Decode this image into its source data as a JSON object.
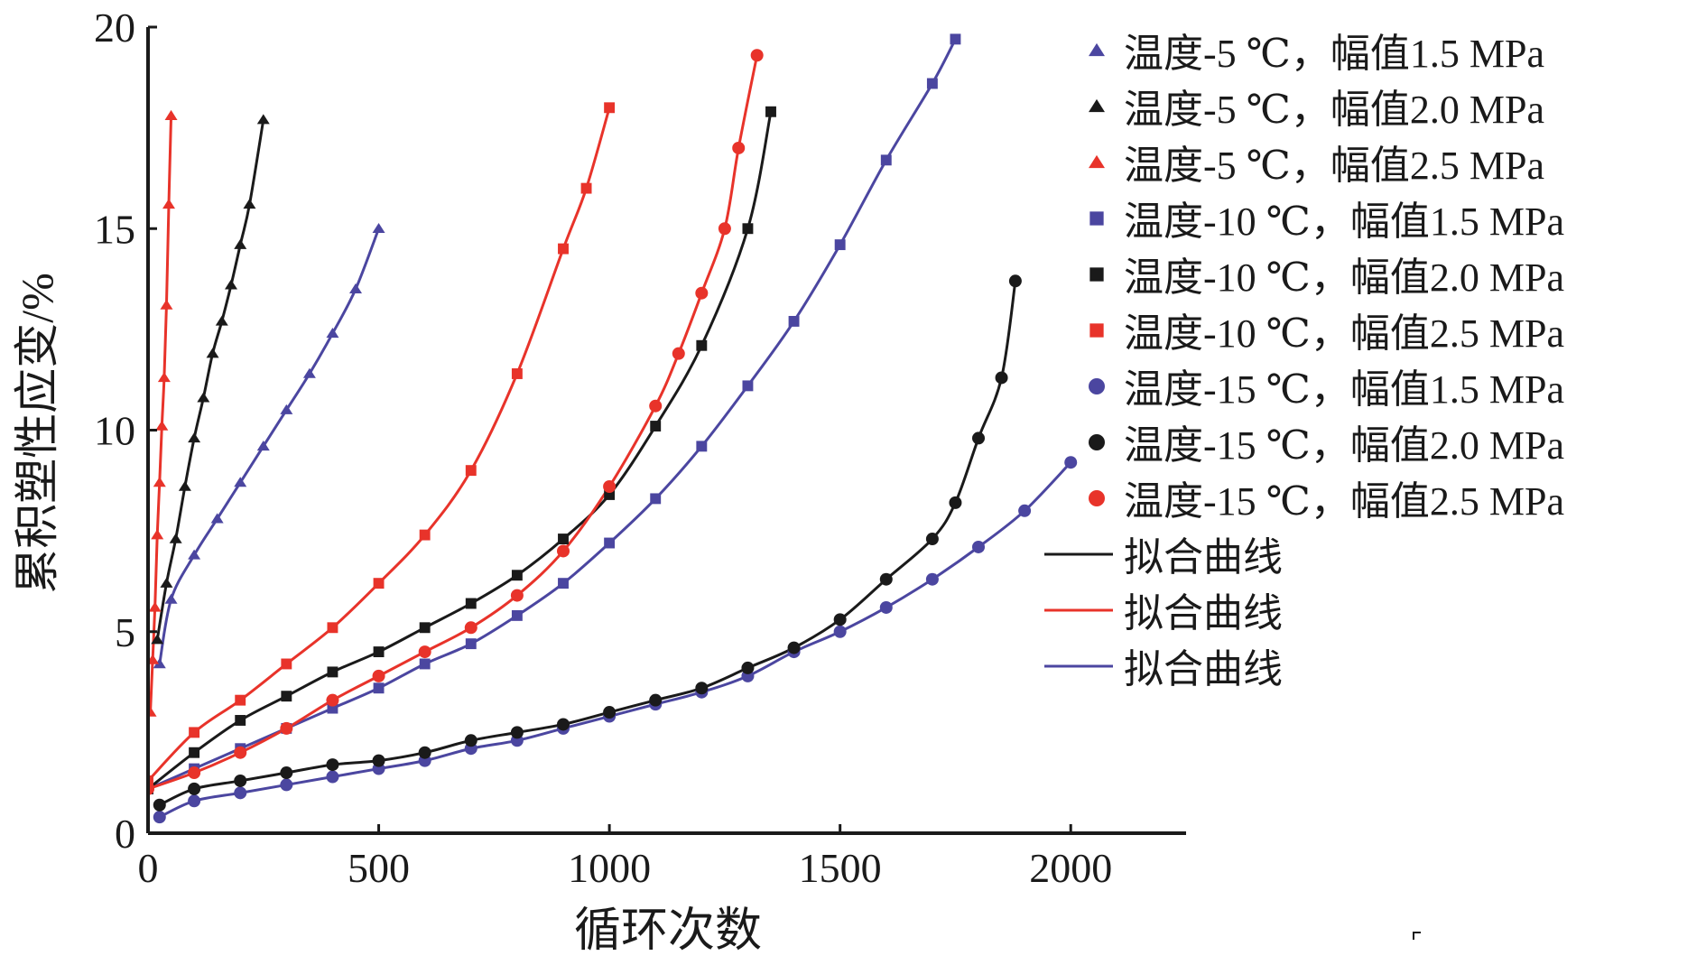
{
  "chart_data": {
    "type": "scatter",
    "title": "",
    "xlabel": "循环次数",
    "ylabel": "累积塑性应变/%",
    "xlim": [
      0,
      2250
    ],
    "ylim": [
      0,
      20
    ],
    "xticks": [
      "0",
      "500",
      "1000",
      "1500",
      "2000"
    ],
    "yticks": [
      "0",
      "5",
      "10",
      "15",
      "20"
    ],
    "grid": false,
    "legend_position": "right",
    "colors": {
      "blue": "#4b46a0",
      "black": "#1a1a1a",
      "red": "#e8332a"
    },
    "series": [
      {
        "name": "温度-5 ℃，幅值1.5 MPa",
        "marker": "triangle",
        "color": "blue",
        "x": [
          25,
          50,
          100,
          150,
          200,
          250,
          300,
          350,
          400,
          450,
          500
        ],
        "y": [
          4.2,
          5.8,
          6.9,
          7.8,
          8.7,
          9.6,
          10.5,
          11.4,
          12.4,
          13.5,
          15.0
        ]
      },
      {
        "name": "温度-5 ℃，幅值2.0 MPa",
        "marker": "triangle",
        "color": "black",
        "x": [
          20,
          40,
          60,
          80,
          100,
          120,
          140,
          160,
          180,
          200,
          220,
          250
        ],
        "y": [
          4.8,
          6.2,
          7.3,
          8.6,
          9.8,
          10.8,
          11.9,
          12.7,
          13.6,
          14.6,
          15.6,
          17.7
        ]
      },
      {
        "name": "温度-5 ℃，幅值2.5 MPa",
        "marker": "triangle",
        "color": "red",
        "x": [
          5,
          10,
          15,
          20,
          25,
          30,
          35,
          40,
          45,
          50
        ],
        "y": [
          3.0,
          4.3,
          5.6,
          7.4,
          8.7,
          10.1,
          11.3,
          13.1,
          15.6,
          17.8
        ]
      },
      {
        "name": "温度-10 ℃，幅值1.5 MPa",
        "marker": "square",
        "color": "blue",
        "x": [
          0,
          100,
          200,
          300,
          400,
          500,
          600,
          700,
          800,
          900,
          1000,
          1100,
          1200,
          1300,
          1400,
          1500,
          1600,
          1700,
          1750
        ],
        "y": [
          1.1,
          1.6,
          2.1,
          2.6,
          3.1,
          3.6,
          4.2,
          4.7,
          5.4,
          6.2,
          7.2,
          8.3,
          9.6,
          11.1,
          12.7,
          14.6,
          16.7,
          18.6,
          19.7
        ]
      },
      {
        "name": "温度-10 ℃，幅值2.0 MPa",
        "marker": "square",
        "color": "black",
        "x": [
          0,
          100,
          200,
          300,
          400,
          500,
          600,
          700,
          800,
          900,
          1000,
          1100,
          1200,
          1300,
          1350
        ],
        "y": [
          1.1,
          2.0,
          2.8,
          3.4,
          4.0,
          4.5,
          5.1,
          5.7,
          6.4,
          7.3,
          8.4,
          10.1,
          12.1,
          15.0,
          17.9
        ]
      },
      {
        "name": "温度-10 ℃，幅值2.5 MPa",
        "marker": "square",
        "color": "red",
        "x": [
          0,
          100,
          200,
          300,
          400,
          500,
          600,
          700,
          800,
          900,
          950,
          1000
        ],
        "y": [
          1.3,
          2.5,
          3.3,
          4.2,
          5.1,
          6.2,
          7.4,
          9.0,
          11.4,
          14.5,
          16.0,
          18.0
        ]
      },
      {
        "name": "温度-15 ℃，幅值1.5 MPa",
        "marker": "circle",
        "color": "blue",
        "x": [
          25,
          100,
          200,
          300,
          400,
          500,
          600,
          700,
          800,
          900,
          1000,
          1100,
          1200,
          1300,
          1400,
          1500,
          1600,
          1700,
          1800,
          1900,
          2000
        ],
        "y": [
          0.4,
          0.8,
          1.0,
          1.2,
          1.4,
          1.6,
          1.8,
          2.1,
          2.3,
          2.6,
          2.9,
          3.2,
          3.5,
          3.9,
          4.5,
          5.0,
          5.6,
          6.3,
          7.1,
          8.0,
          9.2
        ]
      },
      {
        "name": "温度-15 ℃，幅值2.0 MPa",
        "marker": "circle",
        "color": "black",
        "x": [
          25,
          100,
          200,
          300,
          400,
          500,
          600,
          700,
          800,
          900,
          1000,
          1100,
          1200,
          1300,
          1400,
          1500,
          1600,
          1700,
          1750,
          1800,
          1850,
          1880
        ],
        "y": [
          0.7,
          1.1,
          1.3,
          1.5,
          1.7,
          1.8,
          2.0,
          2.3,
          2.5,
          2.7,
          3.0,
          3.3,
          3.6,
          4.1,
          4.6,
          5.3,
          6.3,
          7.3,
          8.2,
          9.8,
          11.3,
          13.7
        ]
      },
      {
        "name": "温度-15 ℃，幅值2.5 MPa",
        "marker": "circle",
        "color": "red",
        "x": [
          0,
          100,
          200,
          300,
          400,
          500,
          600,
          700,
          800,
          900,
          1000,
          1100,
          1150,
          1200,
          1250,
          1280,
          1320
        ],
        "y": [
          1.1,
          1.5,
          2.0,
          2.6,
          3.3,
          3.9,
          4.5,
          5.1,
          5.9,
          7.0,
          8.6,
          10.6,
          11.9,
          13.4,
          15.0,
          17.0,
          19.3
        ]
      }
    ],
    "fit_lines": [
      {
        "name": "拟合曲线",
        "color": "black"
      },
      {
        "name": "拟合曲线",
        "color": "red"
      },
      {
        "name": "拟合曲线",
        "color": "blue"
      }
    ]
  }
}
